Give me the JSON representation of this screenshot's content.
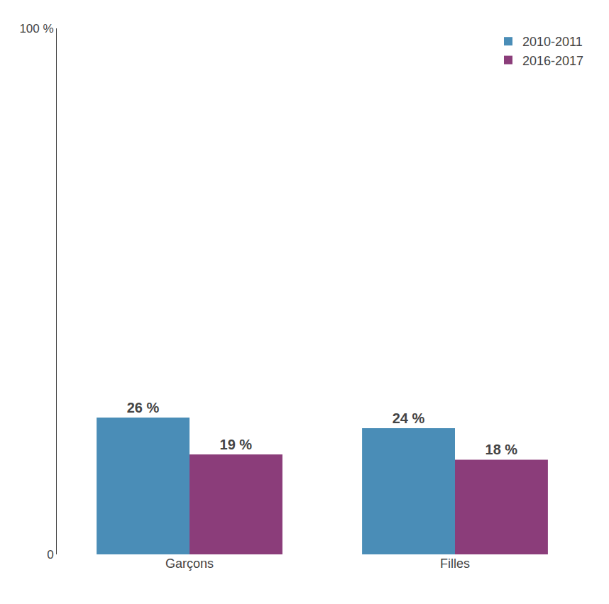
{
  "chart_data": {
    "type": "bar",
    "categories": [
      "Garçons",
      "Filles"
    ],
    "series": [
      {
        "name": "2010-2011",
        "color": "#4a8db7",
        "values": [
          26,
          24
        ],
        "value_labels": [
          "26 %",
          "24 %"
        ]
      },
      {
        "name": "2016-2017",
        "color": "#8b3d7a",
        "values": [
          19,
          18
        ],
        "value_labels": [
          "19 %",
          "18 %"
        ]
      }
    ],
    "ylim": [
      0,
      100
    ],
    "yticks": [
      0,
      {
        "value": 100,
        "label": "100 %"
      }
    ],
    "grid": false,
    "legend": "upper right",
    "data_labels": true
  }
}
